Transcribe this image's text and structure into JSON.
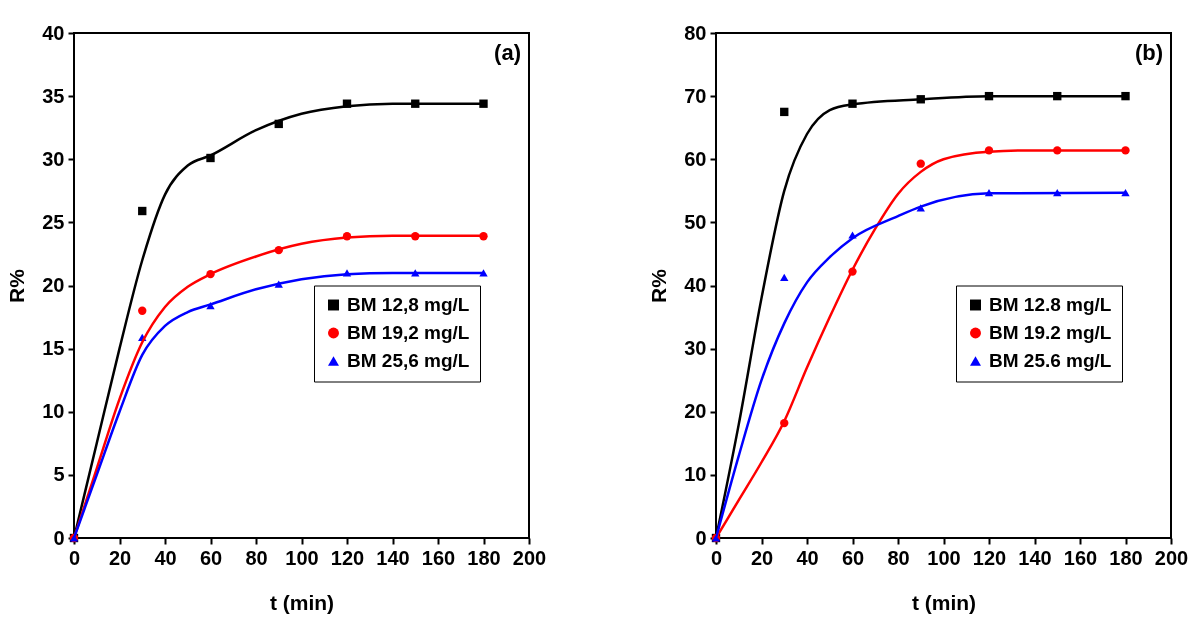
{
  "chart_data": [
    {
      "type": "scatter",
      "xlabel": "t (min)",
      "ylabel": "R%",
      "annotations": [
        "(a)"
      ],
      "x": [
        0,
        30,
        60,
        90,
        120,
        150,
        180
      ],
      "xlim": [
        0,
        200
      ],
      "xticks": [
        0,
        20,
        40,
        60,
        80,
        100,
        120,
        140,
        160,
        180,
        200
      ],
      "ylim": [
        0,
        40
      ],
      "yticks": [
        0,
        5,
        10,
        15,
        20,
        25,
        30,
        35,
        40
      ],
      "legend": "right",
      "series": [
        {
          "name": "BM 12,8 mg/L",
          "marker": "square",
          "color": "#000000",
          "values": [
            0,
            25.9,
            30.1,
            32.8,
            34.4,
            34.4,
            34.4
          ]
        },
        {
          "name": "BM 19,2 mg/L",
          "marker": "circle",
          "color": "#ff0000",
          "values": [
            0,
            18.0,
            20.9,
            22.8,
            23.9,
            23.9,
            23.9
          ]
        },
        {
          "name": "BM 25,6 mg/L",
          "marker": "triangle",
          "color": "#0000ff",
          "values": [
            0,
            15.9,
            18.4,
            20.1,
            21.0,
            21.0,
            21.0
          ]
        },
        {
          "type": "line",
          "color": "#000000",
          "x": [
            0,
            10,
            20,
            30,
            40,
            50,
            60,
            80,
            100,
            120,
            140,
            180
          ],
          "values": [
            0,
            7.5,
            15,
            22,
            27.2,
            29.5,
            30.3,
            32.3,
            33.6,
            34.2,
            34.4,
            34.4
          ]
        },
        {
          "type": "line",
          "color": "#ff0000",
          "x": [
            0,
            10,
            20,
            30,
            40,
            50,
            60,
            80,
            100,
            120,
            140,
            180
          ],
          "values": [
            0,
            5.5,
            11,
            15.5,
            18.3,
            19.9,
            20.9,
            22.3,
            23.3,
            23.8,
            23.95,
            23.95
          ]
        },
        {
          "type": "line",
          "color": "#0000ff",
          "x": [
            0,
            10,
            20,
            30,
            40,
            50,
            60,
            80,
            100,
            120,
            140,
            180
          ],
          "values": [
            0,
            5,
            10,
            14.5,
            16.8,
            17.9,
            18.5,
            19.7,
            20.5,
            20.9,
            21.0,
            21.0
          ]
        }
      ]
    },
    {
      "type": "scatter",
      "xlabel": "t (min)",
      "ylabel": "R%",
      "annotations": [
        "(b)"
      ],
      "x": [
        0,
        30,
        60,
        90,
        120,
        150,
        180
      ],
      "xlim": [
        0,
        200
      ],
      "xticks": [
        0,
        20,
        40,
        60,
        80,
        100,
        120,
        140,
        160,
        180,
        200
      ],
      "ylim": [
        0,
        80
      ],
      "yticks": [
        0,
        10,
        20,
        30,
        40,
        50,
        60,
        70,
        80
      ],
      "legend": "right",
      "series": [
        {
          "name": "BM 12.8 mg/L",
          "marker": "square",
          "color": "#000000",
          "values": [
            0,
            67.5,
            68.8,
            69.5,
            70.0,
            70.0,
            70.0
          ]
        },
        {
          "name": "BM 19.2 mg/L",
          "marker": "circle",
          "color": "#ff0000",
          "values": [
            0,
            18.2,
            42.2,
            59.3,
            61.4,
            61.4,
            61.4
          ]
        },
        {
          "name": "BM 25.6 mg/L",
          "marker": "triangle",
          "color": "#0000ff",
          "values": [
            0,
            41.3,
            48.0,
            52.3,
            54.7,
            54.7,
            54.7
          ]
        },
        {
          "type": "line",
          "color": "#000000",
          "x": [
            0,
            10,
            20,
            30,
            40,
            50,
            60,
            90,
            120,
            180
          ],
          "values": [
            0,
            18,
            38,
            55,
            64,
            67.8,
            68.7,
            69.5,
            70,
            70
          ]
        },
        {
          "type": "line",
          "color": "#ff0000",
          "x": [
            0,
            10,
            20,
            30,
            40,
            50,
            60,
            70,
            80,
            90,
            100,
            120,
            140,
            180
          ],
          "values": [
            0,
            6,
            12,
            18.5,
            27,
            35,
            42.5,
            49,
            54.5,
            58,
            60,
            61.2,
            61.4,
            61.4
          ]
        },
        {
          "type": "line",
          "color": "#0000ff",
          "x": [
            0,
            10,
            20,
            30,
            40,
            50,
            60,
            80,
            90,
            120,
            180
          ],
          "values": [
            0,
            13,
            25,
            34,
            40.5,
            44.5,
            47.5,
            51,
            52.5,
            54.6,
            54.7
          ]
        }
      ]
    }
  ]
}
